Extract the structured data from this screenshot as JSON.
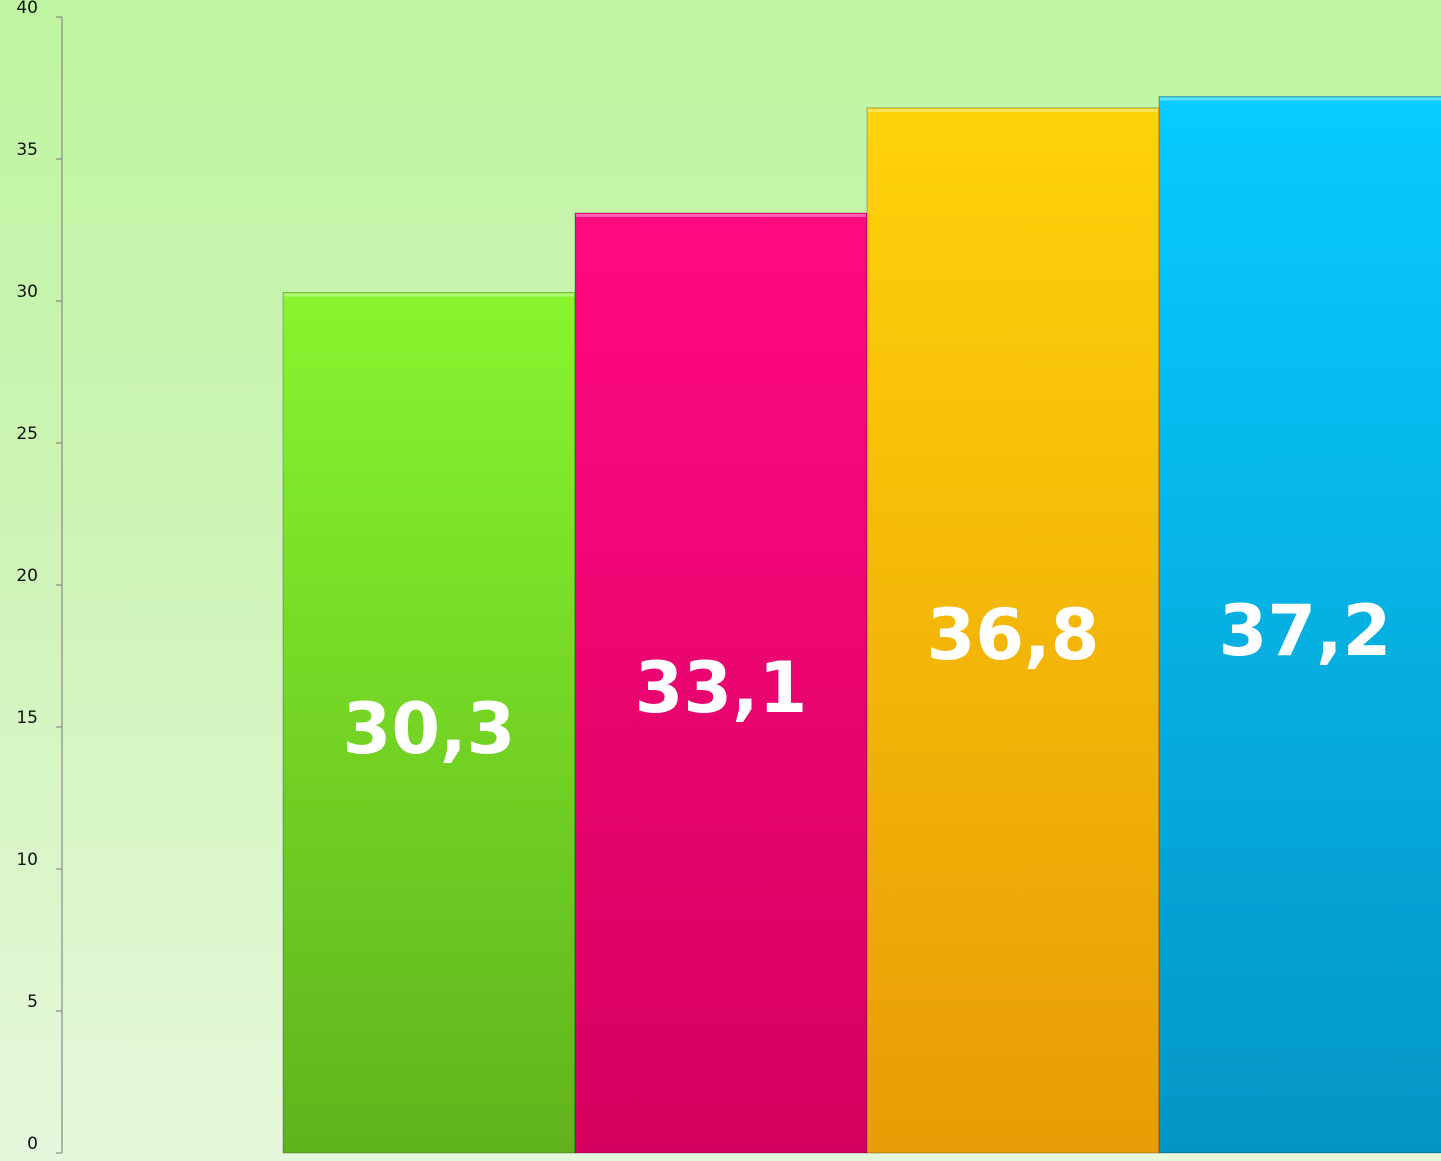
{
  "chart_data": {
    "type": "bar",
    "title": "",
    "xlabel": "",
    "ylabel": "",
    "ylim": [
      0,
      40
    ],
    "yticks": [
      0,
      5,
      10,
      15,
      20,
      25,
      30,
      35,
      40
    ],
    "grid": false,
    "legend": "none",
    "values": [
      30.3,
      33.1,
      36.8,
      37.2
    ],
    "labels": [
      "30,3",
      "33,1",
      "36,8",
      "37,2"
    ],
    "colors": [
      "#7ee82a",
      "#ff0a7f",
      "#ffc80a",
      "#08c5f8"
    ]
  }
}
